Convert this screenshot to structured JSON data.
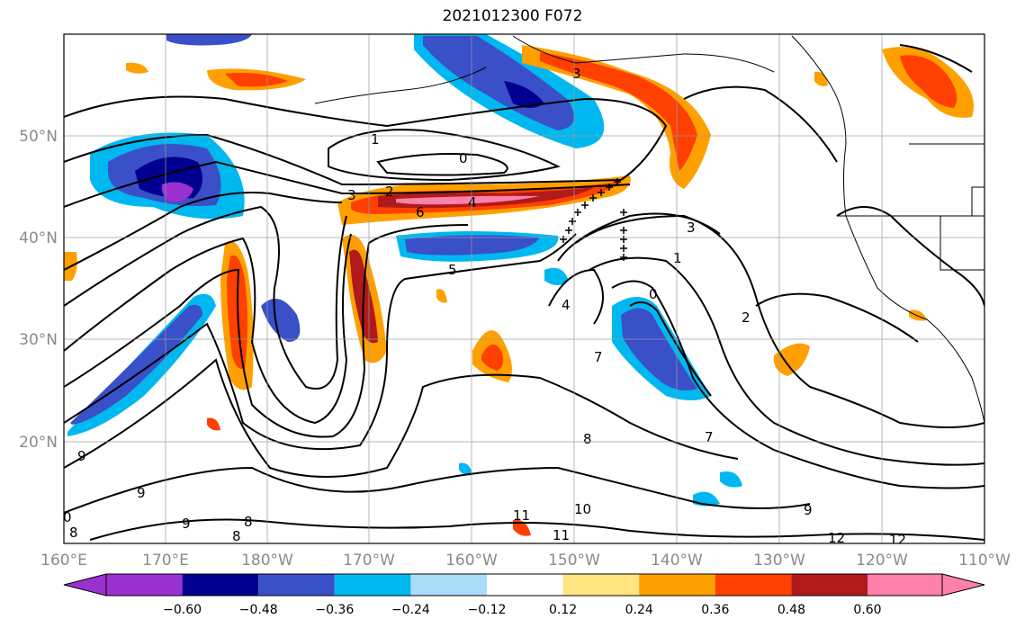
{
  "title": "2021012300 F072",
  "map": {
    "lon_range": [
      160,
      250
    ],
    "lat_range": [
      10,
      60
    ],
    "lon_ticks": [
      "160°E",
      "170°E",
      "180°W",
      "170°W",
      "160°W",
      "150°W",
      "140°W",
      "130°W",
      "120°W",
      "110°W"
    ],
    "lat_ticks": [
      "20°N",
      "30°N",
      "40°N",
      "50°N"
    ],
    "gridlines": true
  },
  "colorbar": {
    "ticks": [
      "−0.60",
      "−0.48",
      "−0.36",
      "−0.24",
      "−0.12",
      "0.12",
      "0.24",
      "0.36",
      "0.48",
      "0.60"
    ],
    "colors": [
      "#9b30d0",
      "#000090",
      "#3a50c8",
      "#00b8f0",
      "#aadcf8",
      "#ffffff",
      "#ffe680",
      "#ffa000",
      "#ff4000",
      "#b01a1a",
      "#ff80aa"
    ],
    "extend": "both"
  },
  "contour_labels": [
    "1",
    "0",
    "3",
    "2",
    "6",
    "4",
    "3",
    "1",
    "0",
    "4",
    "7",
    "5",
    "9",
    "9",
    "8",
    "8",
    "9",
    "0",
    "8",
    "10",
    "11",
    "11",
    "9",
    "12",
    "12",
    "3",
    "2",
    "7",
    "8"
  ]
}
